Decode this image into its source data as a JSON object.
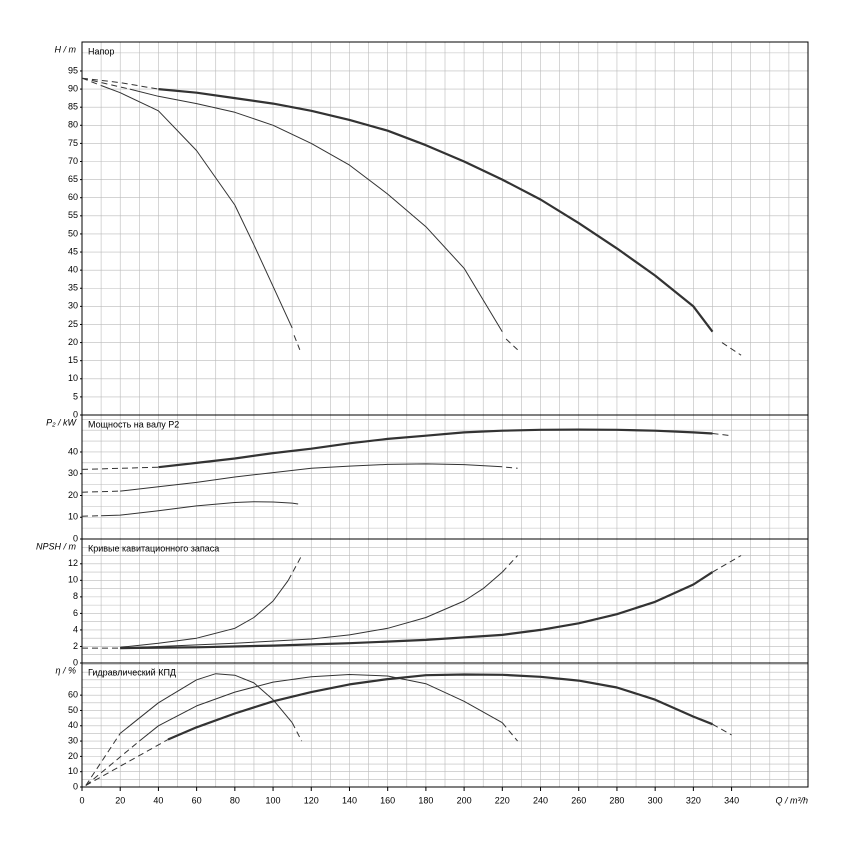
{
  "chart_data": [
    {
      "type": "line",
      "title": "Напор",
      "ylabel": "H / m",
      "xlim": [
        0,
        380
      ],
      "ylim": [
        0,
        103
      ],
      "yticks": [
        0,
        5,
        10,
        15,
        20,
        25,
        30,
        35,
        40,
        45,
        50,
        55,
        60,
        65,
        70,
        75,
        80,
        85,
        90,
        95
      ],
      "y_minor_grid": [
        100
      ],
      "grid": true,
      "series": [
        {
          "color": "#333",
          "width": 2.2,
          "x": [
            40,
            60,
            80,
            100,
            120,
            140,
            160,
            180,
            200,
            220,
            240,
            260,
            280,
            300,
            320,
            330
          ],
          "values": [
            90,
            89,
            87.5,
            86,
            84,
            81.5,
            78.5,
            74.5,
            70,
            65,
            59.5,
            53,
            46,
            38.5,
            30,
            23
          ]
        },
        {
          "color": "#333",
          "width": 1,
          "dash": true,
          "x": [
            0,
            20,
            40
          ],
          "values": [
            93,
            91.8,
            90
          ]
        },
        {
          "color": "#333",
          "width": 1,
          "dash": true,
          "x": [
            335,
            345
          ],
          "values": [
            20,
            16.5
          ]
        },
        {
          "color": "#333",
          "width": 1,
          "x": [
            25,
            40,
            60,
            80,
            100,
            120,
            140,
            160,
            180,
            200,
            220
          ],
          "values": [
            90,
            88,
            86,
            83.6,
            80,
            75,
            69,
            61,
            52,
            40.5,
            23
          ]
        },
        {
          "color": "#333",
          "width": 1,
          "dash": true,
          "x": [
            0,
            25
          ],
          "values": [
            93,
            90
          ]
        },
        {
          "color": "#333",
          "width": 1,
          "dash": true,
          "x": [
            222,
            228
          ],
          "values": [
            21,
            18
          ]
        },
        {
          "color": "#333",
          "width": 1,
          "x": [
            10,
            20,
            40,
            60,
            80,
            90,
            100,
            110
          ],
          "values": [
            91,
            89,
            84,
            73,
            58,
            47,
            35.5,
            24
          ]
        },
        {
          "color": "#333",
          "width": 1,
          "dash": true,
          "x": [
            0,
            10
          ],
          "values": [
            93,
            91
          ]
        },
        {
          "color": "#333",
          "width": 1,
          "dash": true,
          "x": [
            111,
            114
          ],
          "values": [
            22,
            18
          ]
        }
      ]
    },
    {
      "type": "line",
      "title": "Мощность на валу P2",
      "ylabel": "P₂ / kW",
      "xlim": [
        0,
        380
      ],
      "ylim": [
        0,
        57
      ],
      "yticks": [
        0,
        10,
        20,
        30,
        40
      ],
      "y_minor_grid": [
        5,
        15,
        25,
        35,
        45,
        50,
        55
      ],
      "grid": true,
      "series": [
        {
          "color": "#333",
          "width": 2.2,
          "x": [
            40,
            60,
            80,
            100,
            120,
            140,
            160,
            180,
            200,
            220,
            240,
            260,
            280,
            300,
            320,
            330
          ],
          "values": [
            33,
            35,
            37,
            39.5,
            41.5,
            44,
            46,
            47.5,
            49,
            49.8,
            50.2,
            50.3,
            50.2,
            49.8,
            49,
            48.5
          ]
        },
        {
          "color": "#333",
          "width": 1,
          "dash": true,
          "x": [
            0,
            40
          ],
          "values": [
            32,
            33
          ]
        },
        {
          "color": "#333",
          "width": 1,
          "dash": true,
          "x": [
            330,
            340
          ],
          "values": [
            48.5,
            47.5
          ]
        },
        {
          "color": "#333",
          "width": 1,
          "x": [
            20,
            40,
            60,
            80,
            100,
            120,
            140,
            160,
            180,
            200,
            220
          ],
          "values": [
            22,
            24,
            26,
            28.5,
            30.5,
            32.5,
            33.5,
            34.3,
            34.5,
            34.2,
            33.2
          ]
        },
        {
          "color": "#333",
          "width": 1,
          "dash": true,
          "x": [
            0,
            20
          ],
          "values": [
            21.5,
            22
          ]
        },
        {
          "color": "#333",
          "width": 1,
          "dash": true,
          "x": [
            222,
            228
          ],
          "values": [
            33,
            32.5
          ]
        },
        {
          "color": "#333",
          "width": 1,
          "x": [
            10,
            20,
            40,
            60,
            80,
            90,
            100,
            110
          ],
          "values": [
            10.7,
            11,
            13,
            15.2,
            16.8,
            17.1,
            17,
            16.5
          ]
        },
        {
          "color": "#333",
          "width": 1,
          "dash": true,
          "x": [
            0,
            10
          ],
          "values": [
            10.5,
            10.7
          ]
        },
        {
          "color": "#333",
          "width": 1,
          "dash": true,
          "x": [
            110,
            114
          ],
          "values": [
            16.5,
            16
          ]
        }
      ]
    },
    {
      "type": "line",
      "title": "Кривые кавитационного запаса",
      "ylabel": "NPSH / m",
      "xlim": [
        0,
        380
      ],
      "ylim": [
        0,
        15
      ],
      "yticks": [
        0,
        2,
        4,
        6,
        8,
        10,
        12
      ],
      "y_minor_grid": [
        1,
        3,
        5,
        7,
        9,
        11,
        13,
        14
      ],
      "grid": true,
      "series": [
        {
          "color": "#333",
          "width": 2.2,
          "x": [
            20,
            60,
            100,
            140,
            180,
            220,
            240,
            260,
            280,
            300,
            320,
            330
          ],
          "values": [
            1.8,
            1.9,
            2.1,
            2.4,
            2.8,
            3.4,
            4,
            4.8,
            5.9,
            7.4,
            9.5,
            11
          ]
        },
        {
          "color": "#333",
          "width": 1,
          "dash": true,
          "x": [
            0,
            20
          ],
          "values": [
            1.8,
            1.8
          ]
        },
        {
          "color": "#333",
          "width": 1,
          "dash": true,
          "x": [
            330,
            345
          ],
          "values": [
            11,
            13
          ]
        },
        {
          "color": "#333",
          "width": 1,
          "x": [
            20,
            40,
            80,
            120,
            140,
            160,
            180,
            200,
            210,
            220
          ],
          "values": [
            1.8,
            2,
            2.4,
            2.9,
            3.4,
            4.2,
            5.5,
            7.5,
            9,
            11
          ]
        },
        {
          "color": "#333",
          "width": 1,
          "dash": true,
          "x": [
            220,
            228
          ],
          "values": [
            11,
            13
          ]
        },
        {
          "color": "#333",
          "width": 1,
          "x": [
            20,
            40,
            60,
            80,
            90,
            100,
            108
          ],
          "values": [
            1.9,
            2.4,
            3,
            4.2,
            5.5,
            7.5,
            10
          ]
        },
        {
          "color": "#333",
          "width": 1,
          "dash": true,
          "x": [
            108,
            115
          ],
          "values": [
            10,
            13
          ]
        }
      ]
    },
    {
      "type": "line",
      "title": "Гидравлический КПД",
      "ylabel": "η / %",
      "xlabel": "Q / m³/h",
      "xlim": [
        0,
        380
      ],
      "ylim": [
        0,
        81
      ],
      "yticks": [
        0,
        10,
        20,
        30,
        40,
        50,
        60
      ],
      "y_minor_grid": [
        5,
        15,
        25,
        35,
        45,
        55,
        65,
        70,
        75,
        80
      ],
      "grid": true,
      "xticks": [
        0,
        20,
        40,
        60,
        80,
        100,
        120,
        140,
        160,
        180,
        200,
        220,
        240,
        260,
        280,
        300,
        320,
        340
      ],
      "x_minor_grid": [
        10,
        30,
        50,
        70,
        90,
        110,
        130,
        150,
        170,
        190,
        210,
        230,
        250,
        270,
        290,
        310,
        330,
        350,
        360,
        370
      ],
      "series": [
        {
          "color": "#333",
          "width": 2.2,
          "x": [
            45,
            60,
            80,
            100,
            120,
            140,
            160,
            180,
            200,
            220,
            240,
            260,
            280,
            300,
            320,
            330
          ],
          "values": [
            31,
            39,
            48,
            56,
            62,
            67,
            70.5,
            73,
            73.5,
            73.3,
            72,
            69.5,
            65,
            57,
            46,
            41
          ]
        },
        {
          "color": "#333",
          "width": 1,
          "dash": true,
          "x": [
            2,
            45
          ],
          "values": [
            1,
            31
          ]
        },
        {
          "color": "#333",
          "width": 1,
          "dash": true,
          "x": [
            330,
            340
          ],
          "values": [
            41,
            34
          ]
        },
        {
          "color": "#333",
          "width": 1,
          "x": [
            30,
            40,
            60,
            80,
            100,
            120,
            140,
            160,
            180,
            200,
            220
          ],
          "values": [
            30,
            40,
            53,
            62,
            68.5,
            72,
            73.5,
            72.5,
            67.5,
            56,
            42
          ]
        },
        {
          "color": "#333",
          "width": 1,
          "dash": true,
          "x": [
            2,
            30
          ],
          "values": [
            1,
            30
          ]
        },
        {
          "color": "#333",
          "width": 1,
          "dash": true,
          "x": [
            220,
            228
          ],
          "values": [
            42,
            30
          ]
        },
        {
          "color": "#333",
          "width": 1,
          "x": [
            20,
            40,
            60,
            70,
            80,
            90,
            100,
            110
          ],
          "values": [
            35,
            55,
            70,
            74,
            73,
            68,
            57,
            42
          ]
        },
        {
          "color": "#333",
          "width": 1,
          "dash": true,
          "x": [
            2,
            20
          ],
          "values": [
            1,
            35
          ]
        },
        {
          "color": "#333",
          "width": 1,
          "dash": true,
          "x": [
            110,
            115
          ],
          "values": [
            42,
            30
          ]
        }
      ]
    }
  ]
}
